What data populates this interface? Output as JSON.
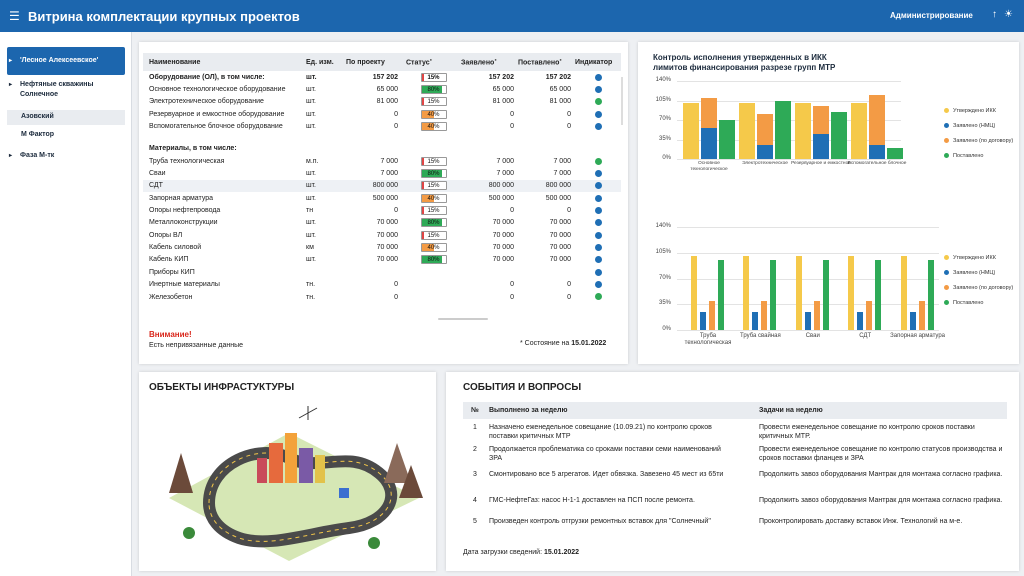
{
  "header": {
    "title": "Витрина комплектации крупных проектов",
    "admin": "Администрирование",
    "menu_icon": "☰",
    "up_icon": "↑",
    "sun_icon": "☀"
  },
  "sidebar": {
    "items": [
      {
        "label": "'Лесное Алексеевское'"
      },
      {
        "label": "Нефтяные скважины Солнечное"
      },
      {
        "label": "Азовский"
      },
      {
        "label": "М Фактор"
      },
      {
        "label": "Фаза М-тк"
      }
    ]
  },
  "table": {
    "columns": [
      "Наименование",
      "Ед. изм.",
      "По проекту",
      "Статус",
      "Заявлено",
      "Поставлено",
      "Индикатор"
    ],
    "rows": [
      {
        "name": "Оборудование (ОЛ), в том числе:",
        "unit": "шт.",
        "proj": "157 202",
        "status": "15%",
        "claimed": "157 202",
        "delivered": "157 202"
      },
      {
        "name": "Основное технологическое оборудование",
        "unit": "шт.",
        "proj": "65 000",
        "status": "80%",
        "claimed": "65 000",
        "delivered": "65 000"
      },
      {
        "name": "Электротехническое оборудование",
        "unit": "шт.",
        "proj": "81 000",
        "status": "15%",
        "claimed": "81 000",
        "delivered": "81 000"
      },
      {
        "name": "Резервуарное и емкостное оборудование",
        "unit": "шт.",
        "proj": "0",
        "status": "40%",
        "claimed": "0",
        "delivered": "0"
      },
      {
        "name": "Вспомогательное блочное оборудование",
        "unit": "шт.",
        "proj": "0",
        "status": "40%",
        "claimed": "0",
        "delivered": "0"
      },
      {
        "name": "Материалы, в том числе:",
        "unit": "",
        "proj": "",
        "status": "",
        "claimed": "",
        "delivered": ""
      },
      {
        "name": "Труба технологическая",
        "unit": "м.п.",
        "proj": "7 000",
        "status": "15%",
        "claimed": "7 000",
        "delivered": "7 000"
      },
      {
        "name": "Сваи",
        "unit": "шт.",
        "proj": "7 000",
        "status": "80%",
        "claimed": "7 000",
        "delivered": "7 000"
      },
      {
        "name": "СДТ",
        "unit": "шт.",
        "proj": "800 000",
        "status": "15%",
        "claimed": "800 000",
        "delivered": "800 000"
      },
      {
        "name": "Запорная арматура",
        "unit": "шт.",
        "proj": "500 000",
        "status": "40%",
        "claimed": "500 000",
        "delivered": "500 000"
      },
      {
        "name": "Опоры нефтепровода",
        "unit": "тн",
        "proj": "0",
        "status": "15%",
        "claimed": "0",
        "delivered": "0"
      },
      {
        "name": "Металлоконструкции",
        "unit": "шт.",
        "proj": "70 000",
        "status": "80%",
        "claimed": "70 000",
        "delivered": "70 000"
      },
      {
        "name": "Опоры ВЛ",
        "unit": "шт.",
        "proj": "70 000",
        "status": "15%",
        "claimed": "70 000",
        "delivered": "70 000"
      },
      {
        "name": "Кабель силовой",
        "unit": "км",
        "proj": "70 000",
        "status": "40%",
        "claimed": "70 000",
        "delivered": "70 000"
      },
      {
        "name": "Кабель КИП",
        "unit": "шт.",
        "proj": "70 000",
        "status": "80%",
        "claimed": "70 000",
        "delivered": "70 000"
      },
      {
        "name": "Приборы КИП",
        "unit": "",
        "proj": "",
        "status": "",
        "claimed": "",
        "delivered": ""
      },
      {
        "name": "Инертные материалы",
        "unit": "тн.",
        "proj": "0",
        "status": "",
        "claimed": "0",
        "delivered": "0"
      },
      {
        "name": "Железобетон",
        "unit": "тн.",
        "proj": "0",
        "status": "",
        "claimed": "0",
        "delivered": "0"
      }
    ],
    "warning_title": "Внимание!",
    "warning_text": "Есть непривязанные данные",
    "state_label": "* Состояние на",
    "state_date": "15.01.2022"
  },
  "chart_data": [
    {
      "type": "bar",
      "title": "Контроль исполнения утвержденных в ИКК лимитов финансирования разрезе групп МТР",
      "categories": [
        "Основное технологическое",
        "Электротехническое",
        "Резервуарное и емкостное",
        "Вспомогательное блочное"
      ],
      "ylim": [
        0,
        140
      ],
      "yticks": [
        "0%",
        "35%",
        "70%",
        "105%",
        "140%"
      ],
      "series": [
        {
          "name": "Утверждено ИКК",
          "color": "#f5c94a",
          "values": [
            100,
            100,
            100,
            100
          ]
        },
        {
          "name": "Заявлено (НМЦ)",
          "color": "#1f6fb5",
          "values": [
            55,
            25,
            45,
            25
          ]
        },
        {
          "name": "Заявлено (по договору)",
          "color": "#f39b45",
          "values": [
            110,
            80,
            95,
            115
          ]
        },
        {
          "name": "Поставлено",
          "color": "#2eaa57",
          "values": [
            70,
            105,
            85,
            20
          ]
        }
      ]
    },
    {
      "type": "bar",
      "categories": [
        "Труба технологическая",
        "Труба свайная",
        "Сваи",
        "СДТ",
        "Запорная арматура"
      ],
      "ylim": [
        0,
        140
      ],
      "yticks": [
        "0%",
        "35%",
        "70%",
        "105%",
        "140%"
      ],
      "series": [
        {
          "name": "Утверждено ИКК",
          "color": "#f5c94a",
          "values": [
            100,
            100,
            100,
            100,
            100
          ]
        },
        {
          "name": "Заявлено (НМЦ)",
          "color": "#1f6fb5",
          "values": [
            25,
            25,
            25,
            25,
            25
          ]
        },
        {
          "name": "Заявлено (по договору)",
          "color": "#f39b45",
          "values": [
            40,
            40,
            40,
            40,
            40
          ]
        },
        {
          "name": "Поставлено",
          "color": "#2eaa57",
          "values": [
            95,
            95,
            95,
            95,
            95
          ]
        }
      ]
    }
  ],
  "infra": {
    "title": "ОБЪЕКТЫ ИНФРАСТУКТУРЫ"
  },
  "events": {
    "title": "СОБЫТИЯ И ВОПРОСЫ",
    "columns": [
      "№",
      "Выполнено за неделю",
      "Задачи на неделю"
    ],
    "rows": [
      {
        "n": "1",
        "done": "Назначено еженедельное совещание (10.09.21) по контролю сроков поставки критичных МТР",
        "todo": "Провести еженедельное совещание по контролю сроков поставки критичных МТР."
      },
      {
        "n": "2",
        "done": "Продолжается проблематика со сроками поставки семи наименований ЗРА",
        "todo": "Провести еженедельное совещание по контролю статусов производства и сроков поставки фланцев и ЗРА"
      },
      {
        "n": "3",
        "done": "Смонтировано все 5 агрегатов. Идет обвязка. Завезено 45 мест из 65ти",
        "todo": "Продолжить завоз оборудования Мантрак для монтажа согласно графика."
      },
      {
        "n": "4",
        "done": "ГМС-НефтеГаз:  насос Н-1-1 доставлен на ПСП после ремонта.",
        "todo": "Продолжить завоз оборудования Мантрак для монтажа согласно графика."
      },
      {
        "n": "5",
        "done": "Произведен контроль отгрузки ремонтных вставок для \"Солнечный\"",
        "todo": "Проконтролировать доставку вставок Инж. Технологий на м-е."
      }
    ],
    "load_label": "Дата загрузки сведений:",
    "load_date": "15.01.2022"
  },
  "status_colors": {
    "15%": "#e04545",
    "40%": "#f39b45",
    "80%": "#2eaa57"
  },
  "indicator_colors": [
    "#1f6fb5",
    "#1f6fb5",
    "#2eaa57",
    "#1f6fb5",
    "#1f6fb5",
    "",
    "#2eaa57",
    "#1f6fb5",
    "#1f6fb5",
    "#1f6fb5",
    "#1f6fb5",
    "#1f6fb5",
    "#1f6fb5",
    "#1f6fb5",
    "#1f6fb5",
    "#1f6fb5",
    "#1f6fb5",
    "#2eaa57"
  ]
}
